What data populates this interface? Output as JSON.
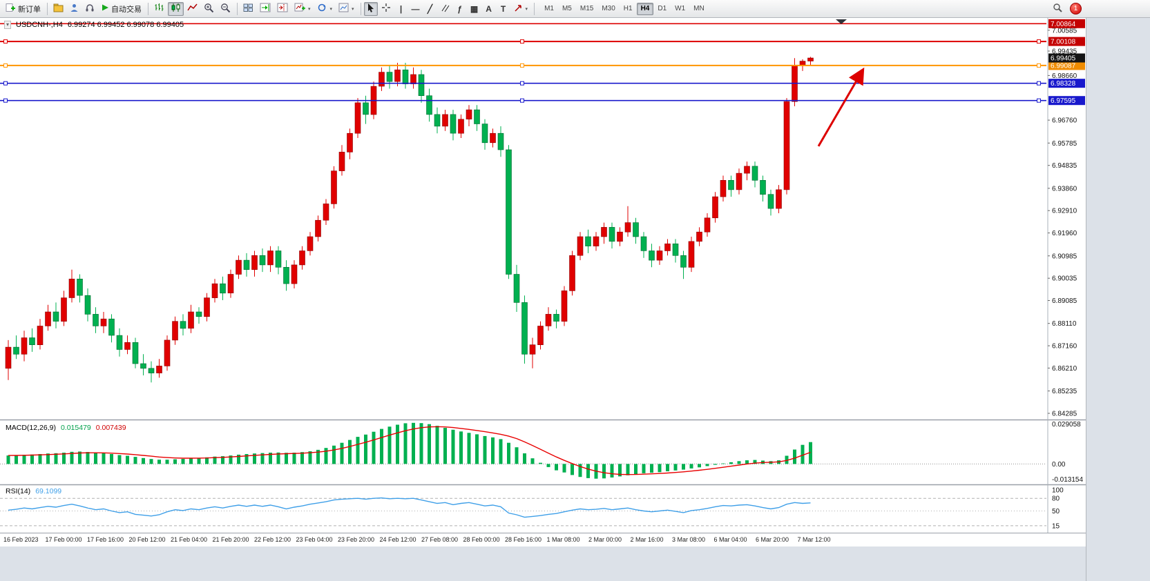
{
  "toolbar": {
    "new_order_label": "新订单",
    "autotrade_label": "自动交易",
    "timeframes": [
      "M1",
      "M5",
      "M15",
      "M30",
      "H1",
      "H4",
      "D1",
      "W1",
      "MN"
    ],
    "active_timeframe": "H4",
    "notification_count": "1",
    "glyphs": {
      "vline": "|",
      "hline": "—",
      "trendline": "╱",
      "fibonacci": "ƒ",
      "shapes": "▦",
      "text": "A",
      "label": "T",
      "caret": "▾"
    }
  },
  "chart": {
    "symbol_period": "USDCNH-,H4",
    "ohlc": "6.99274 6.99452 6.99078 6.99405",
    "collapse_glyph": "▾"
  },
  "indicators": {
    "macd_name": "MACD(12,26,9)",
    "macd_main": "0.015479",
    "macd_signal": "0.007439",
    "macd_axis": [
      "0.029058",
      "0.00",
      "-0.013154"
    ],
    "rsi_name": "RSI(14)",
    "rsi_value": "69.1099",
    "rsi_axis": [
      "100",
      "80",
      "50",
      "15"
    ]
  },
  "axis": {
    "price_ticks": [
      "7.00585",
      "6.99435",
      "6.98660",
      "6.96760",
      "6.95785",
      "6.94835",
      "6.93860",
      "6.92910",
      "6.91960",
      "6.90985",
      "6.90035",
      "6.89085",
      "6.88110",
      "6.87160",
      "6.86210",
      "6.85235",
      "6.84285"
    ],
    "time_labels": [
      "16 Feb 2023",
      "17 Feb 00:00",
      "17 Feb 16:00",
      "20 Feb 12:00",
      "21 Feb 04:00",
      "21 Feb 20:00",
      "22 Feb 12:00",
      "23 Feb 04:00",
      "23 Feb 20:00",
      "24 Feb 12:00",
      "27 Feb 08:00",
      "28 Feb 00:00",
      "28 Feb 16:00",
      "1 Mar 08:00",
      "2 Mar 00:00",
      "2 Mar 16:00",
      "3 Mar 08:00",
      "6 Mar 04:00",
      "6 Mar 20:00",
      "7 Mar 12:00"
    ]
  },
  "chart_data": {
    "type": "candlestick",
    "symbol": "USDCNH-",
    "timeframe": "H4",
    "title": "USDCNH-,H4 6.99274 6.99452 6.99078 6.99405",
    "price_range": [
      6.8405,
      7.0105
    ],
    "last_price": 6.99405,
    "price_badges": [
      {
        "text": "7.00864",
        "price": 7.00864,
        "bg": "#c40000",
        "fg": "#ffffff"
      },
      {
        "text": "7.00108",
        "price": 7.00108,
        "bg": "#c40000",
        "fg": "#ffffff"
      },
      {
        "text": "6.99087",
        "price": 6.99087,
        "bg": "#f08c00",
        "fg": "#ffffff"
      },
      {
        "text": "6.98328",
        "price": 6.98328,
        "bg": "#1818cc",
        "fg": "#ffffff"
      },
      {
        "text": "6.97595",
        "price": 6.97595,
        "bg": "#1818cc",
        "fg": "#ffffff"
      },
      {
        "text": "6.99405",
        "price": 6.99405,
        "bg": "#151515",
        "fg": "#ffffff"
      }
    ],
    "levels": [
      {
        "price": 7.00864,
        "color": "#dd0000",
        "width": 1.6,
        "selected": false
      },
      {
        "price": 7.00108,
        "color": "#dd0000",
        "width": 2,
        "selected": true
      },
      {
        "price": 6.99087,
        "color": "#ff9500",
        "width": 2,
        "selected": true
      },
      {
        "price": 6.98328,
        "color": "#1818cc",
        "width": 1.6,
        "selected": true
      },
      {
        "price": 6.97595,
        "color": "#1818cc",
        "width": 1.6,
        "selected": true
      }
    ],
    "arrow": {
      "from_index": 102,
      "from_price": 6.9565,
      "to_index": 107.5,
      "to_price": 6.9885,
      "color": "#dd0000"
    },
    "colors": {
      "up": "#e00000",
      "up_stroke": "#8c0000",
      "down": "#00b050",
      "down_stroke": "#006a30",
      "macd_hist": "#00b050",
      "macd_signal": "#e80000",
      "rsi_line": "#3e9fe8"
    },
    "candles": [
      [
        6.862,
        6.874,
        6.857,
        6.871
      ],
      [
        6.871,
        6.876,
        6.866,
        6.868
      ],
      [
        6.868,
        6.878,
        6.865,
        6.875
      ],
      [
        6.875,
        6.879,
        6.869,
        6.872
      ],
      [
        6.872,
        6.883,
        6.87,
        6.88
      ],
      [
        6.88,
        6.889,
        6.878,
        6.886
      ],
      [
        6.886,
        6.89,
        6.879,
        6.882
      ],
      [
        6.882,
        6.895,
        6.88,
        6.892
      ],
      [
        6.892,
        6.904,
        6.89,
        6.9
      ],
      [
        6.9,
        6.902,
        6.89,
        6.893
      ],
      [
        6.893,
        6.896,
        6.882,
        6.885
      ],
      [
        6.885,
        6.888,
        6.877,
        6.88
      ],
      [
        6.88,
        6.886,
        6.877,
        6.883
      ],
      [
        6.883,
        6.885,
        6.873,
        6.876
      ],
      [
        6.876,
        6.879,
        6.867,
        6.87
      ],
      [
        6.87,
        6.876,
        6.868,
        6.873
      ],
      [
        6.873,
        6.875,
        6.862,
        6.864
      ],
      [
        6.864,
        6.868,
        6.859,
        6.862
      ],
      [
        6.862,
        6.865,
        6.856,
        6.86
      ],
      [
        6.86,
        6.866,
        6.858,
        6.863
      ],
      [
        6.863,
        6.876,
        6.861,
        6.874
      ],
      [
        6.874,
        6.884,
        6.872,
        6.882
      ],
      [
        6.882,
        6.885,
        6.876,
        6.879
      ],
      [
        6.879,
        6.889,
        6.877,
        6.886
      ],
      [
        6.886,
        6.888,
        6.881,
        6.884
      ],
      [
        6.884,
        6.894,
        6.882,
        6.892
      ],
      [
        6.892,
        6.9,
        6.89,
        6.898
      ],
      [
        6.898,
        6.901,
        6.891,
        6.894
      ],
      [
        6.894,
        6.904,
        6.892,
        6.902
      ],
      [
        6.902,
        6.91,
        6.9,
        6.908
      ],
      [
        6.908,
        6.911,
        6.901,
        6.904
      ],
      [
        6.904,
        6.912,
        6.901,
        6.91
      ],
      [
        6.91,
        6.913,
        6.903,
        6.906
      ],
      [
        6.906,
        6.914,
        6.903,
        6.912
      ],
      [
        6.912,
        6.914,
        6.902,
        6.905
      ],
      [
        6.905,
        6.908,
        6.895,
        6.898
      ],
      [
        6.898,
        6.908,
        6.896,
        6.906
      ],
      [
        6.906,
        6.914,
        6.904,
        6.912
      ],
      [
        6.912,
        6.92,
        6.91,
        6.918
      ],
      [
        6.918,
        6.927,
        6.916,
        6.925
      ],
      [
        6.925,
        6.934,
        6.923,
        6.932
      ],
      [
        6.932,
        6.948,
        6.93,
        6.946
      ],
      [
        6.946,
        6.957,
        6.944,
        6.954
      ],
      [
        6.954,
        6.964,
        6.951,
        6.962
      ],
      [
        6.962,
        6.977,
        6.96,
        6.975
      ],
      [
        6.975,
        6.978,
        6.966,
        6.97
      ],
      [
        6.97,
        6.984,
        6.968,
        6.982
      ],
      [
        6.982,
        6.99,
        6.98,
        6.988
      ],
      [
        6.988,
        6.991,
        6.981,
        6.984
      ],
      [
        6.984,
        6.992,
        6.982,
        6.989
      ],
      [
        6.989,
        6.992,
        6.981,
        6.983
      ],
      [
        6.983,
        6.99,
        6.981,
        6.987
      ],
      [
        6.987,
        6.989,
        6.975,
        6.978
      ],
      [
        6.978,
        6.981,
        6.967,
        6.97
      ],
      [
        6.97,
        6.973,
        6.962,
        6.965
      ],
      [
        6.965,
        6.972,
        6.963,
        6.97
      ],
      [
        6.97,
        6.972,
        6.959,
        6.962
      ],
      [
        6.962,
        6.97,
        6.96,
        6.968
      ],
      [
        6.968,
        6.974,
        6.965,
        6.972
      ],
      [
        6.972,
        6.974,
        6.963,
        6.966
      ],
      [
        6.966,
        6.968,
        6.955,
        6.958
      ],
      [
        6.958,
        6.964,
        6.956,
        6.962
      ],
      [
        6.962,
        6.965,
        6.952,
        6.955
      ],
      [
        6.955,
        6.957,
        6.9,
        6.902
      ],
      [
        6.902,
        6.906,
        6.886,
        6.89
      ],
      [
        6.89,
        6.893,
        6.864,
        6.868
      ],
      [
        6.868,
        6.875,
        6.862,
        6.872
      ],
      [
        6.872,
        6.882,
        6.87,
        6.88
      ],
      [
        6.88,
        6.888,
        6.878,
        6.885
      ],
      [
        6.885,
        6.887,
        6.879,
        6.882
      ],
      [
        6.882,
        6.897,
        6.88,
        6.895
      ],
      [
        6.895,
        6.912,
        6.893,
        6.91
      ],
      [
        6.91,
        6.92,
        6.908,
        6.918
      ],
      [
        6.918,
        6.921,
        6.911,
        6.914
      ],
      [
        6.914,
        6.92,
        6.912,
        6.918
      ],
      [
        6.918,
        6.924,
        6.915,
        6.922
      ],
      [
        6.922,
        6.924,
        6.913,
        6.916
      ],
      [
        6.916,
        6.922,
        6.914,
        6.92
      ],
      [
        6.92,
        6.931,
        6.918,
        6.924
      ],
      [
        6.924,
        6.926,
        6.915,
        6.918
      ],
      [
        6.918,
        6.92,
        6.909,
        6.912
      ],
      [
        6.912,
        6.915,
        6.905,
        6.908
      ],
      [
        6.908,
        6.914,
        6.906,
        6.912
      ],
      [
        6.912,
        6.917,
        6.91,
        6.915
      ],
      [
        6.915,
        6.917,
        6.907,
        6.91
      ],
      [
        6.91,
        6.912,
        6.9,
        6.905
      ],
      [
        6.905,
        6.918,
        6.903,
        6.916
      ],
      [
        6.916,
        6.922,
        6.914,
        6.92
      ],
      [
        6.92,
        6.928,
        6.918,
        6.926
      ],
      [
        6.926,
        6.937,
        6.924,
        6.935
      ],
      [
        6.935,
        6.944,
        6.933,
        6.942
      ],
      [
        6.942,
        6.944,
        6.935,
        6.938
      ],
      [
        6.938,
        6.947,
        6.936,
        6.945
      ],
      [
        6.945,
        6.95,
        6.942,
        6.948
      ],
      [
        6.948,
        6.95,
        6.939,
        6.942
      ],
      [
        6.942,
        6.944,
        6.933,
        6.936
      ],
      [
        6.936,
        6.938,
        6.927,
        6.93
      ],
      [
        6.93,
        6.94,
        6.928,
        6.938
      ],
      [
        6.938,
        6.977,
        6.936,
        6.9755
      ],
      [
        6.9755,
        6.994,
        6.9735,
        6.991
      ],
      [
        6.991,
        6.9935,
        6.9885,
        6.9927
      ],
      [
        6.99274,
        6.99452,
        6.99078,
        6.99405
      ]
    ],
    "macd": {
      "range": [
        -0.0135,
        0.0295
      ],
      "histogram": [
        0.006,
        0.0062,
        0.0065,
        0.0067,
        0.007,
        0.0074,
        0.0076,
        0.008,
        0.0086,
        0.0088,
        0.0085,
        0.008,
        0.0076,
        0.007,
        0.0063,
        0.0058,
        0.005,
        0.0042,
        0.0035,
        0.003,
        0.003,
        0.0033,
        0.0036,
        0.004,
        0.0043,
        0.0047,
        0.0052,
        0.0055,
        0.006,
        0.0066,
        0.007,
        0.0074,
        0.0077,
        0.008,
        0.0081,
        0.0079,
        0.008,
        0.0084,
        0.009,
        0.01,
        0.0113,
        0.013,
        0.015,
        0.017,
        0.0192,
        0.0208,
        0.0228,
        0.0248,
        0.0264,
        0.0278,
        0.0288,
        0.0291,
        0.0289,
        0.0282,
        0.027,
        0.0256,
        0.0242,
        0.023,
        0.022,
        0.021,
        0.0198,
        0.0188,
        0.0176,
        0.015,
        0.0118,
        0.0075,
        0.004,
        0.0008,
        -0.0022,
        -0.0045,
        -0.006,
        -0.0078,
        -0.0092,
        -0.01,
        -0.0104,
        -0.0102,
        -0.0096,
        -0.0088,
        -0.008,
        -0.0072,
        -0.0066,
        -0.0062,
        -0.0058,
        -0.0052,
        -0.0046,
        -0.004,
        -0.0032,
        -0.0024,
        -0.0015,
        -0.0006,
        0.0004,
        0.0012,
        0.002,
        0.0026,
        0.0028,
        0.0024,
        0.002,
        0.0026,
        0.0058,
        0.0102,
        0.0135,
        0.0155
      ]
    },
    "rsi": {
      "range": [
        0,
        100
      ],
      "levels": [
        80,
        50,
        15
      ],
      "values": [
        52,
        54,
        57,
        55,
        58,
        61,
        59,
        63,
        66,
        62,
        57,
        53,
        55,
        50,
        46,
        48,
        42,
        40,
        38,
        41,
        48,
        53,
        51,
        55,
        53,
        57,
        60,
        57,
        61,
        64,
        61,
        64,
        61,
        64,
        60,
        55,
        59,
        62,
        66,
        69,
        72,
        76,
        78,
        79,
        80,
        78,
        80,
        81,
        79,
        80,
        79,
        80,
        76,
        72,
        68,
        70,
        65,
        68,
        70,
        66,
        62,
        64,
        60,
        45,
        41,
        35,
        37,
        39,
        42,
        44,
        48,
        52,
        55,
        53,
        54,
        56,
        53,
        55,
        57,
        53,
        50,
        48,
        50,
        52,
        49,
        46,
        51,
        53,
        56,
        60,
        63,
        62,
        64,
        65,
        62,
        58,
        55,
        58,
        66,
        70,
        68,
        69.1
      ]
    }
  }
}
